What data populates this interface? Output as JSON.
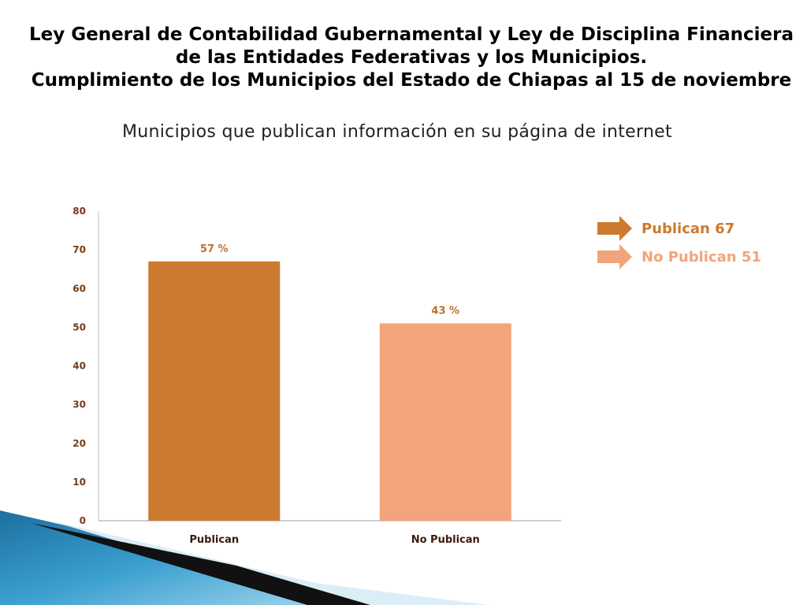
{
  "title": {
    "line1": "Ley General de Contabilidad Gubernamental y Ley de Disciplina Financiera",
    "line2": "de las Entidades Federativas y los Municipios.",
    "line3": "Cumplimiento de los Municipios del Estado de Chiapas al 15 de noviembre"
  },
  "subtitle": "Municipios que publican información en su página de internet",
  "chart_data": {
    "type": "bar",
    "categories": [
      "Publican",
      "No Publican"
    ],
    "values": [
      67,
      51
    ],
    "data_labels": [
      "57 %",
      "43 %"
    ],
    "colors": [
      "#cc7a2f",
      "#f2a47a"
    ],
    "ylim": [
      0,
      80
    ],
    "yticks": [
      0,
      10,
      20,
      30,
      40,
      50,
      60,
      70,
      80
    ],
    "grid": false,
    "legend_position": "right",
    "legend": [
      {
        "label": "Publican 67",
        "color": "#cc7a2f"
      },
      {
        "label": "No Publican 51",
        "color": "#f2a47a"
      }
    ]
  },
  "colors": {
    "tick_label": "#7a3b14",
    "data_label": "#c0702a",
    "axis": "#bfbfbf"
  }
}
